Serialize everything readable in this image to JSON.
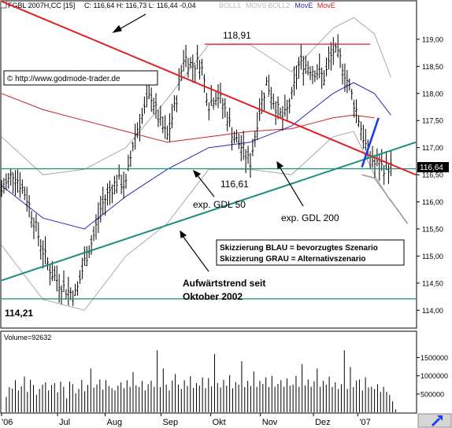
{
  "header": {
    "instrument": "FGBL 2007H,CC [15]",
    "ohlc": "C: 116,64 H: 116,73 L: 116,44 -0,04",
    "indicators": [
      {
        "label": "BOLL1",
        "color": "#bbbbbb"
      },
      {
        "label": "MOVS",
        "color": "#bbbbbb"
      },
      {
        "label": "BOLL2",
        "color": "#bbbbbb"
      },
      {
        "label": "MovE",
        "color": "#2a2ab8"
      },
      {
        "label": "MovE",
        "color": "#cc1f1f"
      }
    ]
  },
  "copyright": "© http://www.godmode-trader.de",
  "annotations": {
    "high": "118,91",
    "low_mid": "116,61",
    "low_start": "114,21",
    "gdl50": "exp. GDL 50",
    "gdl200": "exp. GDL 200",
    "trend_line1": "Aufwärtstrend seit",
    "trend_line2": "Oktober 2002",
    "legend_blue": "Skizzierung BLAU = bevorzugtes Szenario",
    "legend_gray": "Skizzierung GRAU = Alternativszenario",
    "last_price": "116,64"
  },
  "volume_label": "Volume=92632",
  "colors": {
    "price_bar": "#000000",
    "downtrend": "#e02020",
    "uptrend": "#1a8c7c",
    "ema50": "#2a2ab8",
    "ema200": "#cc1f1f",
    "bollinger": "#a0a0a0",
    "scenario_blue": "#1a3cf0",
    "scenario_gray": "#9a9a9a",
    "price_tag_bg": "#000000",
    "price_tag_fg": "#ffffff"
  },
  "chart_data": [
    {
      "type": "line",
      "title": "FGBL 2007H,CC [15]",
      "x_labels": [
        "'06",
        "Jul",
        "Aug",
        "Sep",
        "Okt",
        "Nov",
        "Dez",
        "'07"
      ],
      "y_ticks": [
        114.0,
        114.5,
        115.0,
        115.5,
        116.0,
        116.5,
        117.0,
        117.5,
        118.0,
        118.5,
        119.0
      ],
      "y_tick_labels": [
        "114,00",
        "114,50",
        "115,00",
        "115,50",
        "116,00",
        "116,50",
        "117,00",
        "117,50",
        "118,00",
        "118,50",
        "119,00"
      ],
      "ylim": [
        113.7,
        119.55
      ],
      "series": [
        {
          "key": "close",
          "x": [
            0,
            0.03,
            0.06,
            0.08,
            0.1,
            0.12,
            0.14,
            0.16,
            0.18,
            0.2,
            0.22,
            0.24,
            0.26,
            0.28,
            0.3,
            0.32,
            0.34,
            0.36,
            0.38,
            0.4,
            0.42,
            0.44,
            0.46,
            0.48,
            0.5,
            0.52,
            0.54,
            0.56,
            0.58,
            0.6,
            0.62,
            0.64,
            0.66,
            0.68,
            0.7,
            0.72,
            0.74,
            0.76,
            0.78,
            0.8,
            0.82,
            0.84,
            0.86,
            0.88,
            0.9,
            0.92,
            0.94
          ],
          "values": [
            116.2,
            116.55,
            116.1,
            115.6,
            115.1,
            114.7,
            114.5,
            114.35,
            114.3,
            114.9,
            115.3,
            115.9,
            116.2,
            116.4,
            116.3,
            117.2,
            117.6,
            118.0,
            117.5,
            117.2,
            117.8,
            118.7,
            118.5,
            118.6,
            117.8,
            118.0,
            117.7,
            117.2,
            117.0,
            116.7,
            117.6,
            118.2,
            117.8,
            117.5,
            117.9,
            118.6,
            118.5,
            118.4,
            118.3,
            118.8,
            118.6,
            118.1,
            117.6,
            117.0,
            116.7,
            116.64,
            116.64
          ],
          "color": "#000000"
        },
        {
          "key": "ema50",
          "x": [
            0,
            0.1,
            0.2,
            0.3,
            0.4,
            0.5,
            0.6,
            0.7,
            0.75,
            0.8,
            0.85,
            0.9,
            0.94
          ],
          "values": [
            116.3,
            115.7,
            115.5,
            116.1,
            116.6,
            117.0,
            117.1,
            117.4,
            117.7,
            118.0,
            118.2,
            118.0,
            117.6
          ],
          "color": "#2a2ab8"
        },
        {
          "key": "ema200",
          "x": [
            0,
            0.1,
            0.2,
            0.3,
            0.4,
            0.5,
            0.6,
            0.7,
            0.75,
            0.8,
            0.85,
            0.9
          ],
          "values": [
            118.0,
            117.7,
            117.5,
            117.3,
            117.1,
            117.2,
            117.3,
            117.35,
            117.45,
            117.55,
            117.6,
            117.55
          ],
          "color": "#cc1f1f"
        },
        {
          "key": "boll_upper",
          "x": [
            0,
            0.1,
            0.2,
            0.3,
            0.4,
            0.5,
            0.6,
            0.7,
            0.8,
            0.85,
            0.9,
            0.94
          ],
          "values": [
            117.2,
            116.5,
            116.6,
            117.0,
            117.9,
            118.9,
            118.9,
            118.4,
            119.2,
            119.4,
            119.1,
            118.3
          ],
          "color": "#a0a0a0"
        },
        {
          "key": "boll_lower",
          "x": [
            0,
            0.1,
            0.2,
            0.3,
            0.4,
            0.5,
            0.6,
            0.7,
            0.8,
            0.85,
            0.9,
            0.94
          ],
          "values": [
            115.2,
            114.2,
            114.0,
            115.0,
            115.6,
            116.6,
            116.6,
            116.5,
            117.2,
            117.3,
            116.5,
            116.0
          ],
          "color": "#a0a0a0"
        }
      ],
      "trend_lines": [
        {
          "name": "Abwärtstrend",
          "from": [
            0.0,
            119.7
          ],
          "to": [
            1.0,
            116.5
          ],
          "color": "#e02020"
        },
        {
          "name": "Aufwärtstrend seit Oktober 2002",
          "from": [
            0.0,
            114.55
          ],
          "to": [
            1.0,
            117.1
          ],
          "color": "#1a8c7c"
        }
      ],
      "horizontal_lines": [
        {
          "value": 118.91,
          "from_x": 0.49,
          "to_x": 0.89,
          "color": "#e02020"
        },
        {
          "value": 116.61,
          "from_x": 0.0,
          "to_x": 1.0,
          "color": "#1a8c7c"
        },
        {
          "value": 114.21,
          "from_x": 0.0,
          "to_x": 1.0,
          "color": "#1a8c7c"
        }
      ],
      "scenarios": [
        {
          "name": "BLAU",
          "x": [
            0.87,
            0.91
          ],
          "values": [
            116.64,
            117.55
          ],
          "color": "#1a3cf0"
        },
        {
          "name": "GRAU",
          "x": [
            0.87,
            0.9,
            0.98
          ],
          "values": [
            116.5,
            116.44,
            115.6
          ],
          "color": "#9a9a9a"
        }
      ],
      "grid": false
    },
    {
      "type": "bar",
      "title": "Volume=92632",
      "y_ticks": [
        500000,
        1000000,
        1500000
      ],
      "y_tick_labels": [
        "500000",
        "1000000",
        "1500000"
      ],
      "ylim": [
        0,
        1900000
      ],
      "values": [
        420000,
        690000,
        650000,
        880000,
        600000,
        710000,
        980000,
        560000,
        890000,
        750000,
        480000,
        640000,
        760000,
        820000,
        600000,
        750000,
        800000,
        550000,
        840000,
        700000,
        380000,
        840000,
        770000,
        520000,
        640000,
        890000,
        580000,
        750000,
        1200000,
        680000,
        760000,
        900000,
        620000,
        880000,
        720000,
        660000,
        600000,
        730000,
        820000,
        660000,
        880000,
        700000,
        1100000,
        740000,
        690000,
        860000,
        600000,
        770000,
        870000,
        700000,
        1700000,
        690000,
        1200000,
        760000,
        600000,
        870000,
        1050000,
        760000,
        640000,
        880000,
        720000,
        990000,
        670000,
        800000,
        730000,
        960000,
        660000,
        940000,
        710000,
        1600000,
        800000,
        680000,
        890000,
        730000,
        1020000,
        660000,
        830000,
        760000,
        1400000,
        690000,
        860000,
        720000,
        1120000,
        700000,
        860000,
        780000,
        960000,
        690000,
        1000000,
        700000,
        780000,
        880000,
        700000,
        930000,
        730000,
        760000,
        1000000,
        700000,
        1320000,
        740000,
        900000,
        700000,
        850000,
        1200000,
        700000,
        860000,
        760000,
        980000,
        700000,
        820000,
        640000,
        770000,
        1700000,
        640000,
        1240000,
        690000,
        870000,
        900000,
        600000,
        960000,
        680000,
        700000,
        640000,
        770000,
        560000,
        700000,
        560000,
        480000,
        300000,
        80000
      ],
      "color": "#000000"
    }
  ]
}
